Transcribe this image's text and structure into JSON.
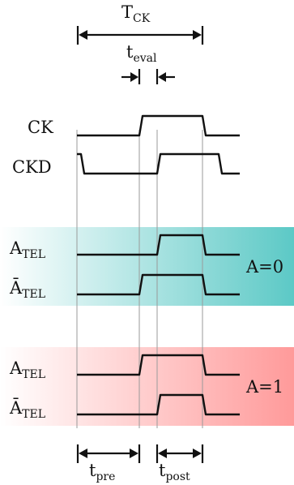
{
  "period_label": {
    "main": "T",
    "sub": "CK"
  },
  "eval_label": {
    "main": "t",
    "sub": "eval"
  },
  "signals": {
    "ck": "CK",
    "ckd": "CKD",
    "a_tel_0": {
      "main": "A",
      "sub": "TEL"
    },
    "abar_tel_0": {
      "main": "Ā",
      "sub": "TEL"
    },
    "a_tel_1": {
      "main": "A",
      "sub": "TEL"
    },
    "abar_tel_1": {
      "main": "Ā",
      "sub": "TEL"
    }
  },
  "regions": {
    "a0": {
      "label": "A=0",
      "color": "#5cc9c6"
    },
    "a1": {
      "label": "A=1",
      "color": "#ff9a9a"
    }
  },
  "pre_label": {
    "main": "t",
    "sub": "pre"
  },
  "post_label": {
    "main": "t",
    "sub": "post"
  }
}
